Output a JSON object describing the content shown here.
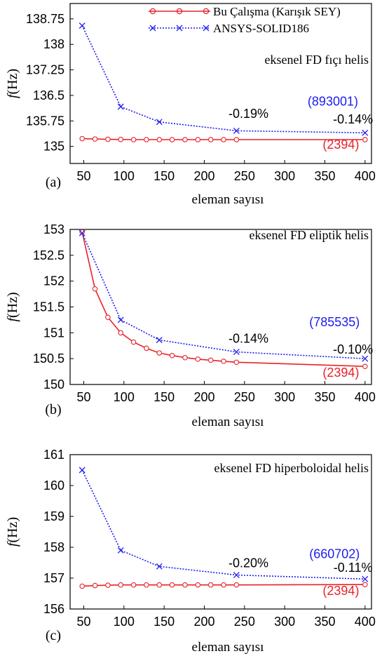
{
  "legend": {
    "entries": [
      {
        "label": "Bu Çalışma (Karışık SEY)",
        "color": "#e8222a",
        "marker": "circle",
        "dash": "solid"
      },
      {
        "label": "ANSYS-SOLID186",
        "color": "#1c1cf0",
        "marker": "x",
        "dash": "dotted"
      }
    ]
  },
  "colors": {
    "red": "#e8222a",
    "blue": "#1c1cf0"
  },
  "chart_data": [
    {
      "type": "line",
      "panel_label": "(a)",
      "title": "eksenel FD fıçı helis",
      "xlabel": "eleman sayısı",
      "ylabel_f": "f",
      "ylabel_unit": "(Hz)",
      "xlim": [
        33,
        408
      ],
      "ylim": [
        134.5,
        139.2
      ],
      "xticks": [
        "50",
        "100",
        "150",
        "200",
        "250",
        "300",
        "350",
        "400"
      ],
      "yticks": [
        "135",
        "135.75",
        "136.5",
        "137.25",
        "138",
        "138.75"
      ],
      "series": [
        {
          "name": "Bu Çalışma (Karışık SEY)",
          "x": [
            48,
            64,
            80,
            96,
            112,
            128,
            144,
            160,
            176,
            192,
            208,
            224,
            240,
            400
          ],
          "y": [
            135.23,
            135.22,
            135.21,
            135.205,
            135.2,
            135.2,
            135.2,
            135.2,
            135.2,
            135.2,
            135.2,
            135.2,
            135.2,
            135.2
          ]
        },
        {
          "name": "ANSYS-SOLID186",
          "x": [
            48,
            96,
            144,
            240,
            400
          ],
          "y": [
            138.55,
            136.17,
            135.72,
            135.46,
            135.4
          ]
        }
      ],
      "annotations": [
        {
          "text": "(893001)",
          "x": 360,
          "y": 136.2,
          "color": "#1c1cf0"
        },
        {
          "text": "-0.19%",
          "x": 255,
          "y": 135.84,
          "color": "#000000"
        },
        {
          "text": "-0.14%",
          "x": 385,
          "y": 135.68,
          "color": "#000000"
        },
        {
          "text": "(2394)",
          "x": 370,
          "y": 134.93,
          "color": "#e8222a"
        }
      ]
    },
    {
      "type": "line",
      "panel_label": "(b)",
      "title": "eksenel FD eliptik helis",
      "xlabel": "eleman sayısı",
      "ylabel_f": "f",
      "ylabel_unit": "(Hz)",
      "xlim": [
        33,
        408
      ],
      "ylim": [
        150,
        153
      ],
      "xticks": [
        "50",
        "100",
        "150",
        "200",
        "250",
        "300",
        "350",
        "400"
      ],
      "yticks": [
        "150",
        "150.5",
        "151",
        "151.5",
        "152",
        "152.5",
        "153"
      ],
      "series": [
        {
          "name": "Bu Çalışma (Karışık SEY)",
          "x": [
            48,
            64,
            80,
            96,
            112,
            128,
            144,
            160,
            176,
            192,
            208,
            224,
            240,
            400
          ],
          "y": [
            152.95,
            151.85,
            151.3,
            151.0,
            150.82,
            150.7,
            150.61,
            150.56,
            150.52,
            150.49,
            150.47,
            150.45,
            150.43,
            150.35
          ]
        },
        {
          "name": "ANSYS-SOLID186",
          "x": [
            48,
            96,
            144,
            240,
            400
          ],
          "y": [
            152.93,
            151.25,
            150.86,
            150.63,
            150.5
          ]
        }
      ],
      "annotations": [
        {
          "text": "(785535)",
          "x": 362,
          "y": 151.13,
          "color": "#1c1cf0"
        },
        {
          "text": "-0.14%",
          "x": 255,
          "y": 150.81,
          "color": "#000000"
        },
        {
          "text": "-0.10%",
          "x": 385,
          "y": 150.6,
          "color": "#000000"
        },
        {
          "text": "(2394)",
          "x": 370,
          "y": 150.15,
          "color": "#e8222a"
        }
      ]
    },
    {
      "type": "line",
      "panel_label": "(c)",
      "title": "eksenel FD hiperboloidal helis",
      "xlabel": "eleman sayısı",
      "ylabel_f": "f",
      "ylabel_unit": "(Hz)",
      "xlim": [
        33,
        408
      ],
      "ylim": [
        156,
        161
      ],
      "xticks": [
        "50",
        "100",
        "150",
        "200",
        "250",
        "300",
        "350",
        "400"
      ],
      "yticks": [
        "156",
        "157",
        "158",
        "159",
        "160",
        "161"
      ],
      "series": [
        {
          "name": "Bu Çalışma (Karışık SEY)",
          "x": [
            48,
            64,
            80,
            96,
            112,
            128,
            144,
            160,
            176,
            192,
            208,
            224,
            240,
            400
          ],
          "y": [
            156.74,
            156.76,
            156.77,
            156.78,
            156.78,
            156.78,
            156.78,
            156.78,
            156.78,
            156.78,
            156.78,
            156.78,
            156.78,
            156.79
          ]
        },
        {
          "name": "ANSYS-SOLID186",
          "x": [
            48,
            96,
            144,
            240,
            400
          ],
          "y": [
            160.5,
            157.9,
            157.38,
            157.1,
            156.97
          ]
        }
      ],
      "annotations": [
        {
          "text": "(660702)",
          "x": 362,
          "y": 157.65,
          "color": "#1c1cf0"
        },
        {
          "text": "-0.20%",
          "x": 255,
          "y": 157.35,
          "color": "#000000"
        },
        {
          "text": "-0.11%",
          "x": 385,
          "y": 157.2,
          "color": "#000000"
        },
        {
          "text": "(2394)",
          "x": 370,
          "y": 156.46,
          "color": "#e8222a"
        }
      ]
    }
  ]
}
